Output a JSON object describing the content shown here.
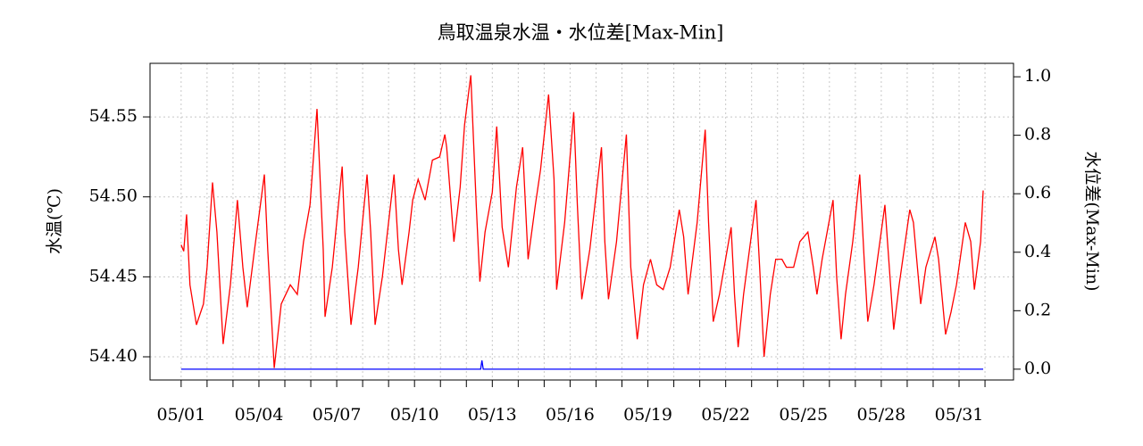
{
  "chart_data": {
    "type": "line",
    "title": "鳥取温泉水温・水位差[Max-Min]",
    "y_label": "水温(℃)",
    "y2_label": "水位差(Max-Min)",
    "grid": true,
    "xlim": [
      -0.2,
      33.1
    ],
    "ylim": [
      54.3855,
      54.5835
    ],
    "y2lim": [
      -0.037,
      1.046
    ],
    "xticks": [
      {
        "value": 1,
        "label": "05/01"
      },
      {
        "value": 2,
        "label": null
      },
      {
        "value": 3,
        "label": null
      },
      {
        "value": 4,
        "label": "05/04"
      },
      {
        "value": 5,
        "label": null
      },
      {
        "value": 6,
        "label": null
      },
      {
        "value": 7,
        "label": "05/07"
      },
      {
        "value": 8,
        "label": null
      },
      {
        "value": 9,
        "label": null
      },
      {
        "value": 10,
        "label": "05/10"
      },
      {
        "value": 11,
        "label": null
      },
      {
        "value": 12,
        "label": null
      },
      {
        "value": 13,
        "label": "05/13"
      },
      {
        "value": 14,
        "label": null
      },
      {
        "value": 15,
        "label": null
      },
      {
        "value": 16,
        "label": "05/16"
      },
      {
        "value": 17,
        "label": null
      },
      {
        "value": 18,
        "label": null
      },
      {
        "value": 19,
        "label": "05/19"
      },
      {
        "value": 20,
        "label": null
      },
      {
        "value": 21,
        "label": null
      },
      {
        "value": 22,
        "label": "05/22"
      },
      {
        "value": 23,
        "label": null
      },
      {
        "value": 24,
        "label": null
      },
      {
        "value": 25,
        "label": "05/25"
      },
      {
        "value": 26,
        "label": null
      },
      {
        "value": 27,
        "label": null
      },
      {
        "value": 28,
        "label": "05/28"
      },
      {
        "value": 29,
        "label": null
      },
      {
        "value": 30,
        "label": null
      },
      {
        "value": 31,
        "label": "05/31"
      },
      {
        "value": 32,
        "label": null
      }
    ],
    "yticks": [
      {
        "value": 54.4,
        "label": "54.40"
      },
      54.45,
      {
        "value": 54.5,
        "label": "54.50"
      },
      54.55
    ],
    "y2ticks": [
      {
        "value": 0,
        "label": "0.0"
      },
      0.2,
      0.4,
      0.6,
      0.8,
      {
        "value": 1,
        "label": "1.0"
      }
    ],
    "series": [
      {
        "color": "#ff0000",
        "axis": "y",
        "x": [
          1.0,
          1.1,
          1.21,
          1.34,
          1.59,
          1.86,
          2.0,
          2.21,
          2.38,
          2.62,
          2.9,
          3.17,
          3.38,
          3.55,
          3.83,
          4.21,
          4.34,
          4.59,
          4.86,
          5.21,
          5.48,
          5.72,
          5.97,
          6.24,
          6.48,
          6.55,
          6.83,
          7.21,
          7.31,
          7.55,
          7.83,
          8.17,
          8.31,
          8.48,
          8.76,
          9.21,
          9.38,
          9.52,
          9.79,
          9.93,
          10.14,
          10.41,
          10.69,
          10.97,
          11.17,
          11.24,
          11.52,
          11.76,
          11.93,
          12.17,
          12.38,
          12.52,
          12.72,
          13.0,
          13.17,
          13.38,
          13.62,
          13.93,
          14.17,
          14.38,
          14.66,
          14.86,
          15.17,
          15.38,
          15.48,
          15.79,
          16.14,
          16.28,
          16.45,
          16.76,
          17.21,
          17.34,
          17.48,
          17.79,
          18.17,
          18.34,
          18.59,
          18.83,
          19.1,
          19.34,
          19.59,
          19.86,
          20.21,
          20.38,
          20.55,
          20.9,
          21.21,
          21.34,
          21.52,
          21.76,
          22.21,
          22.34,
          22.48,
          22.69,
          23.17,
          23.31,
          23.48,
          23.72,
          23.93,
          24.17,
          24.34,
          24.62,
          24.86,
          25.17,
          25.38,
          25.52,
          25.72,
          26.14,
          26.28,
          26.45,
          26.62,
          26.9,
          27.17,
          27.34,
          27.48,
          27.72,
          28.14,
          28.24,
          28.48,
          28.69,
          29.1,
          29.24,
          29.52,
          29.72,
          30.07,
          30.21,
          30.48,
          30.69,
          30.9,
          31.24,
          31.45,
          31.59,
          31.83,
          31.93
        ],
        "values": [
          54.47,
          54.466,
          54.489,
          54.445,
          54.42,
          54.433,
          54.456,
          54.509,
          54.478,
          54.408,
          54.445,
          54.498,
          54.456,
          54.431,
          54.467,
          54.514,
          54.467,
          54.393,
          54.433,
          54.445,
          54.439,
          54.472,
          54.495,
          54.555,
          54.467,
          54.425,
          54.456,
          54.519,
          54.478,
          54.42,
          54.456,
          54.514,
          54.478,
          54.42,
          54.45,
          54.514,
          54.467,
          54.445,
          54.478,
          54.498,
          54.511,
          54.498,
          54.523,
          54.525,
          54.539,
          54.531,
          54.472,
          54.506,
          54.545,
          54.576,
          54.495,
          54.447,
          54.478,
          54.503,
          54.544,
          54.481,
          54.456,
          54.506,
          54.531,
          54.461,
          54.495,
          54.517,
          54.564,
          54.511,
          54.442,
          54.484,
          54.553,
          54.495,
          54.436,
          54.467,
          54.531,
          54.472,
          54.436,
          54.472,
          54.539,
          54.456,
          54.411,
          54.445,
          54.461,
          54.445,
          54.442,
          54.456,
          54.492,
          54.475,
          54.439,
          54.484,
          54.542,
          54.484,
          54.422,
          54.439,
          54.481,
          54.439,
          54.406,
          54.439,
          54.498,
          54.456,
          54.4,
          54.439,
          54.461,
          54.461,
          54.456,
          54.456,
          54.472,
          54.478,
          54.456,
          54.439,
          54.461,
          54.498,
          54.45,
          54.411,
          54.439,
          54.472,
          54.514,
          54.461,
          54.422,
          54.445,
          54.495,
          54.472,
          54.417,
          54.445,
          54.492,
          54.484,
          54.433,
          54.456,
          54.475,
          54.461,
          54.414,
          54.428,
          54.445,
          54.484,
          54.472,
          54.442,
          54.472,
          54.504
        ]
      },
      {
        "color": "#0000ff",
        "axis": "y2",
        "x": [
          1.0,
          12.55,
          12.6,
          12.65,
          31.93
        ],
        "values": [
          0,
          0,
          0.03,
          0,
          0
        ]
      }
    ]
  }
}
